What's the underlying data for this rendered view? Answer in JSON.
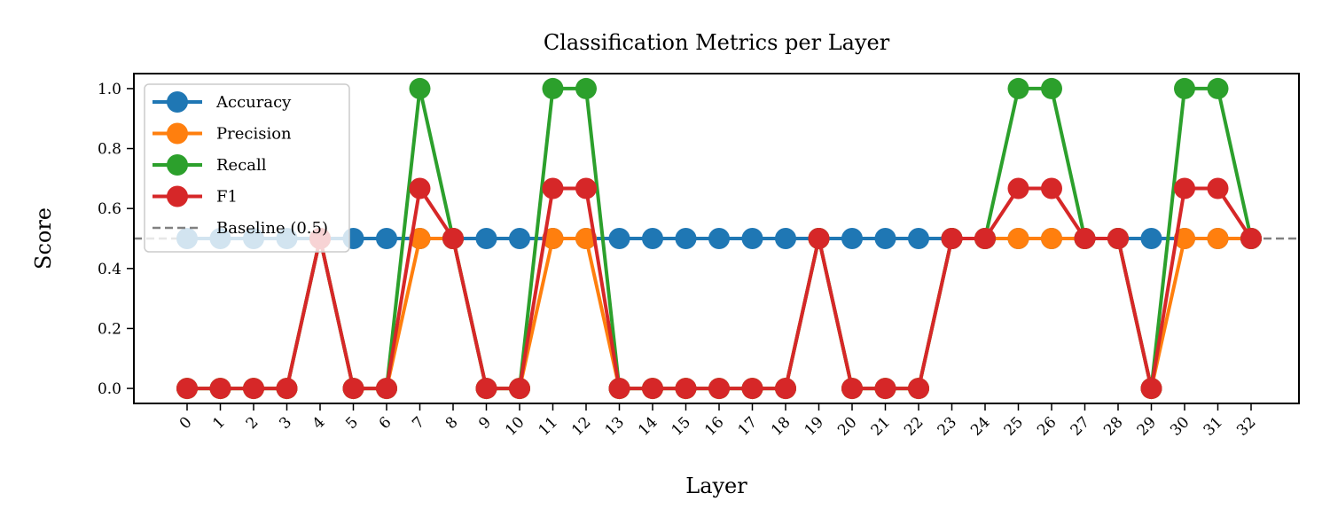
{
  "chart_data": {
    "type": "line",
    "title": "Classification Metrics per Layer",
    "xlabel": "Layer",
    "ylabel": "Score",
    "ylim": [
      -0.05,
      1.05
    ],
    "yticks": [
      "0.0",
      "0.2",
      "0.4",
      "0.6",
      "0.8",
      "1.0"
    ],
    "x": [
      0,
      1,
      2,
      3,
      4,
      5,
      6,
      7,
      8,
      9,
      10,
      11,
      12,
      13,
      14,
      15,
      16,
      17,
      18,
      19,
      20,
      21,
      22,
      23,
      24,
      25,
      26,
      27,
      28,
      29,
      30,
      31,
      32
    ],
    "xtick_labels": [
      "0",
      "1",
      "2",
      "3",
      "4",
      "5",
      "6",
      "7",
      "8",
      "9",
      "10",
      "11",
      "12",
      "13",
      "14",
      "15",
      "16",
      "17",
      "18",
      "19",
      "20",
      "21",
      "22",
      "23",
      "24",
      "25",
      "26",
      "27",
      "28",
      "29",
      "30",
      "31",
      "32"
    ],
    "grid": false,
    "legend_position": "upper-left",
    "series": [
      {
        "name": "Accuracy",
        "color": "#1f77b4",
        "values": [
          0.5,
          0.5,
          0.5,
          0.5,
          0.5,
          0.5,
          0.5,
          0.5,
          0.5,
          0.5,
          0.5,
          0.5,
          0.5,
          0.5,
          0.5,
          0.5,
          0.5,
          0.5,
          0.5,
          0.5,
          0.5,
          0.5,
          0.5,
          0.5,
          0.5,
          0.5,
          0.5,
          0.5,
          0.5,
          0.5,
          0.5,
          0.5,
          0.5
        ]
      },
      {
        "name": "Precision",
        "color": "#ff7f0e",
        "values": [
          0,
          0,
          0,
          0,
          0.5,
          0,
          0,
          0.5,
          0.5,
          0,
          0,
          0.5,
          0.5,
          0,
          0,
          0,
          0,
          0,
          0,
          0.5,
          0,
          0,
          0,
          0.5,
          0.5,
          0.5,
          0.5,
          0.5,
          0.5,
          0,
          0.5,
          0.5,
          0.5
        ]
      },
      {
        "name": "Recall",
        "color": "#2ca02c",
        "values": [
          0,
          0,
          0,
          0,
          0.5,
          0,
          0,
          1,
          0.5,
          0,
          0,
          1,
          1,
          0,
          0,
          0,
          0,
          0,
          0,
          0.5,
          0,
          0,
          0,
          0.5,
          0.5,
          1,
          1,
          0.5,
          0.5,
          0,
          1,
          1,
          0.5
        ]
      },
      {
        "name": "F1",
        "color": "#d62728",
        "values": [
          0,
          0,
          0,
          0,
          0.5,
          0,
          0,
          0.667,
          0.5,
          0,
          0,
          0.667,
          0.667,
          0,
          0,
          0,
          0,
          0,
          0,
          0.5,
          0,
          0,
          0,
          0.5,
          0.5,
          0.667,
          0.667,
          0.5,
          0.5,
          0,
          0.667,
          0.667,
          0.5
        ]
      }
    ],
    "baseline": {
      "name": "Baseline (0.5)",
      "value": 0.5,
      "color": "#808080"
    }
  }
}
